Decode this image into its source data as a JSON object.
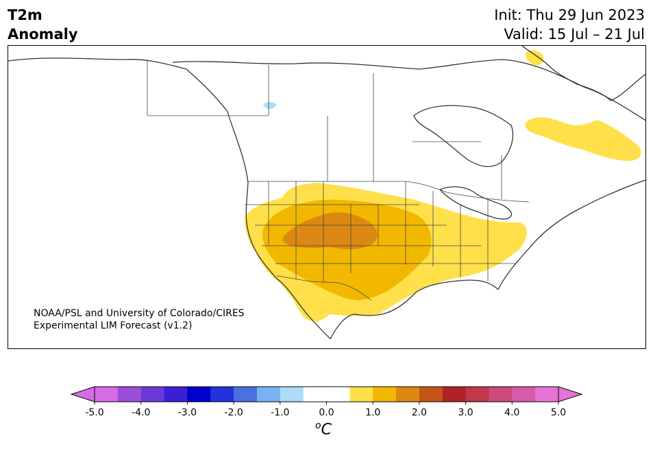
{
  "title": {
    "line1": "T2m",
    "line2": "Anomaly"
  },
  "dates": {
    "init": "Init: Thu 29 Jun 2023",
    "valid": "Valid: 15 Jul – 21 Jul"
  },
  "credit": {
    "line1": "NOAA/PSL and University of Colorado/CIRES",
    "line2": "Experimental LIM Forecast (v1.2)"
  },
  "colorbar": {
    "unit": "°C",
    "unit_base": "o",
    "unit_letter": "C",
    "ticks": [
      "-5.0",
      "-4.0",
      "-3.0",
      "-2.0",
      "-1.0",
      "0.0",
      "1.0",
      "2.0",
      "3.0",
      "4.0",
      "5.0"
    ],
    "colors": [
      "#d66be6",
      "#9b4fd9",
      "#6a3ad8",
      "#3a1fd4",
      "#0000cc",
      "#2233dd",
      "#4a6fe0",
      "#78b2f2",
      "#addcf8",
      "#ffffff",
      "#ffffff",
      "#ffe04a",
      "#f2b800",
      "#db8912",
      "#c55418",
      "#b02324",
      "#c0384a",
      "#cc4a7c",
      "#d65ba8",
      "#e574d4"
    ],
    "under_color": "#d66be6",
    "over_color": "#e574d4"
  },
  "legend_colors": {
    "light_yellow": "#ffe04a",
    "gold": "#f2b800",
    "orange": "#db8912",
    "light_blue": "#addcf8"
  }
}
